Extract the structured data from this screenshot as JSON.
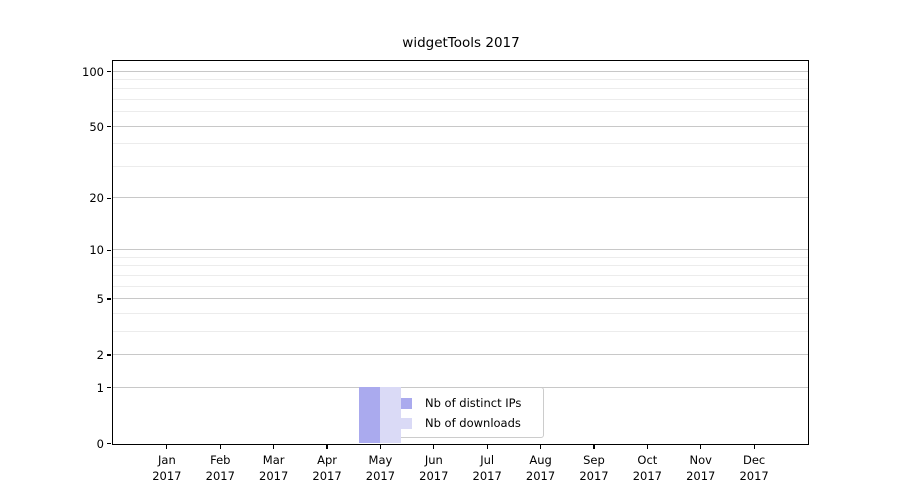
{
  "title": "widgetTools 2017",
  "chart_data": {
    "type": "bar",
    "title": "widgetTools 2017",
    "categories": [
      {
        "label": "Jan",
        "sub": "2017"
      },
      {
        "label": "Feb",
        "sub": "2017"
      },
      {
        "label": "Mar",
        "sub": "2017"
      },
      {
        "label": "Apr",
        "sub": "2017"
      },
      {
        "label": "May",
        "sub": "2017"
      },
      {
        "label": "Jun",
        "sub": "2017"
      },
      {
        "label": "Jul",
        "sub": "2017"
      },
      {
        "label": "Aug",
        "sub": "2017"
      },
      {
        "label": "Sep",
        "sub": "2017"
      },
      {
        "label": "Oct",
        "sub": "2017"
      },
      {
        "label": "Nov",
        "sub": "2017"
      },
      {
        "label": "Dec",
        "sub": "2017"
      }
    ],
    "series": [
      {
        "name": "Nb of distinct IPs",
        "color": "#aaaaee",
        "values": [
          0,
          0,
          0,
          0,
          1,
          0,
          0,
          0,
          0,
          0,
          0,
          0
        ]
      },
      {
        "name": "Nb of downloads",
        "color": "#dadaf6",
        "values": [
          0,
          0,
          0,
          0,
          1,
          0,
          0,
          0,
          0,
          0,
          0,
          0
        ]
      }
    ],
    "xlabel": "",
    "ylabel": "",
    "yscale": "log1p",
    "ylim": [
      0,
      113.4
    ],
    "yticks_major": [
      0,
      1,
      2,
      5,
      10,
      20,
      50,
      100
    ],
    "yticks_minor": [
      3,
      4,
      6,
      7,
      8,
      9,
      30,
      40,
      60,
      70,
      80,
      90
    ],
    "grid": "horizontal",
    "legend_position": "lower center"
  },
  "colors": {
    "major_grid": "#c8c8c8",
    "minor_grid": "#ececec",
    "spine": "#000000",
    "legend_border": "#cccccc",
    "background": "#ffffff"
  }
}
